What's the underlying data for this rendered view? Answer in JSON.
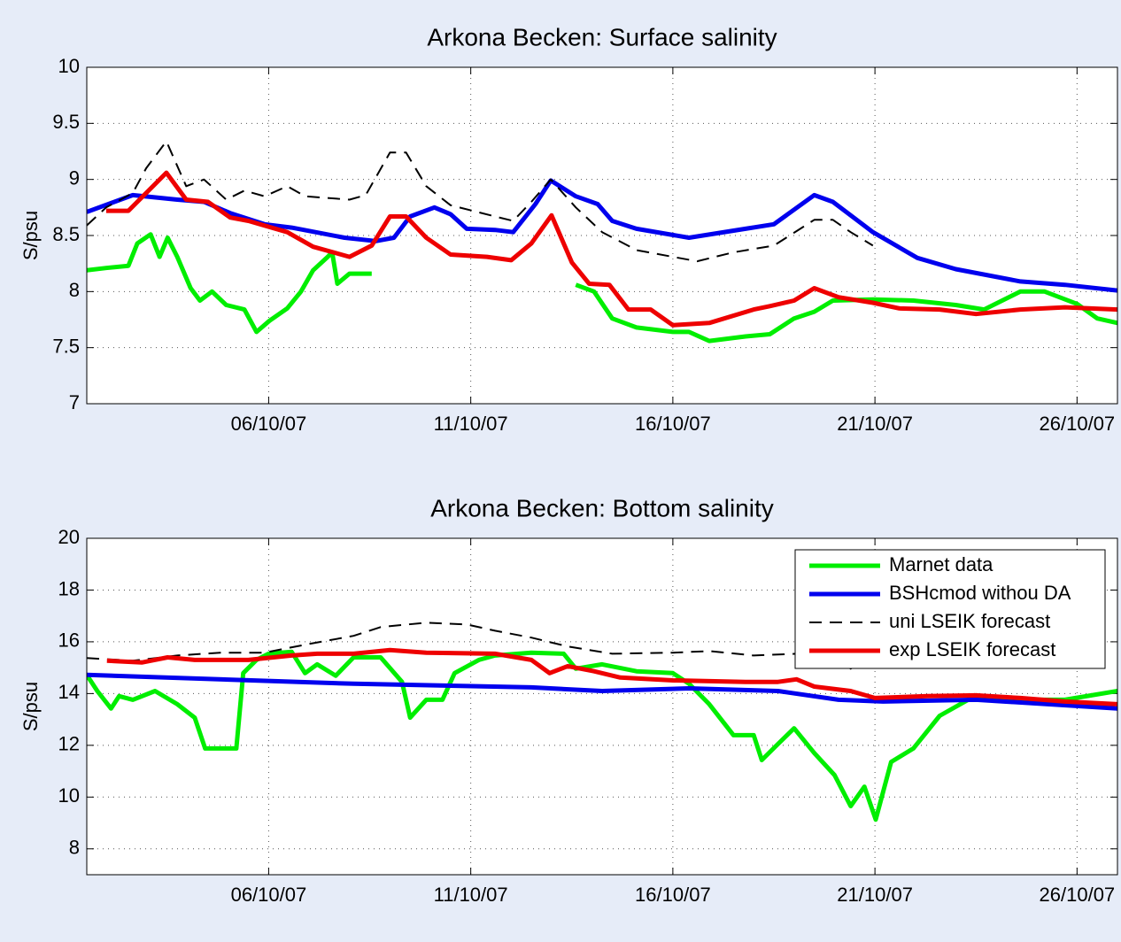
{
  "chart_data": [
    {
      "type": "line",
      "title": "Arkona Becken: Surface salinity",
      "ylabel": "S/psu",
      "xlim": [
        1.5,
        27
      ],
      "ylim": [
        7,
        10
      ],
      "grid": true,
      "xticks": [
        {
          "value": 6,
          "label": "06/10/07"
        },
        {
          "value": 11,
          "label": "11/10/07"
        },
        {
          "value": 16,
          "label": "16/10/07"
        },
        {
          "value": 21,
          "label": "21/10/07"
        },
        {
          "value": 26,
          "label": "26/10/07"
        }
      ],
      "yticks": [
        7,
        7.5,
        8,
        8.5,
        9,
        9.5,
        10
      ],
      "series": [
        {
          "color": "#00ee00",
          "line_style": "solid",
          "x": [
            1.5,
            1.98,
            2.53,
            2.75,
            3.08,
            3.3,
            3.5,
            3.74,
            4.07,
            4.3,
            4.6,
            4.95,
            5.4,
            5.7,
            6.02,
            6.46,
            6.8,
            7.1,
            7.46,
            7.57,
            7.7,
            8,
            8.55,
            9,
            13.6,
            14.05,
            14.5,
            15.1,
            16,
            16.4,
            16.9,
            17.8,
            18.4,
            19,
            19.5,
            19.96,
            20.95,
            21.95,
            23,
            23.7,
            24.6,
            25.2,
            26,
            26.5,
            27
          ],
          "values": [
            8.19,
            8.21,
            8.23,
            8.43,
            8.51,
            8.31,
            8.48,
            8.31,
            8.03,
            7.92,
            8.0,
            7.88,
            7.84,
            7.64,
            7.74,
            7.85,
            8.0,
            8.19,
            8.31,
            8.35,
            8.07,
            8.16,
            8.16,
            null,
            8.06,
            8.0,
            7.76,
            7.68,
            7.64,
            7.64,
            7.56,
            7.6,
            7.62,
            7.76,
            7.82,
            7.92,
            7.93,
            7.92,
            7.88,
            7.84,
            8.0,
            8.0,
            7.89,
            7.76,
            7.72
          ]
        },
        {
          "color": "#0000ee",
          "line_style": "solid",
          "x": [
            1.5,
            2.64,
            3.74,
            4.4,
            5.05,
            5.9,
            6.57,
            7.88,
            8.65,
            9.1,
            9.5,
            10.1,
            10.5,
            10.9,
            11.6,
            12.05,
            12.6,
            12.98,
            13.6,
            14.14,
            14.5,
            15.1,
            16.4,
            17.8,
            18.5,
            19.5,
            19.96,
            20.95,
            22.05,
            23,
            24.6,
            25.7,
            27
          ],
          "values": [
            8.71,
            8.86,
            8.82,
            8.8,
            8.7,
            8.6,
            8.57,
            8.48,
            8.45,
            8.48,
            8.67,
            8.75,
            8.69,
            8.56,
            8.55,
            8.53,
            8.78,
            8.99,
            8.85,
            8.78,
            8.63,
            8.56,
            8.48,
            8.56,
            8.6,
            8.86,
            8.8,
            8.53,
            8.3,
            8.2,
            8.09,
            8.06,
            8.01
          ]
        },
        {
          "color": "#000000",
          "line_style": "dashed",
          "x": [
            1.5,
            1.98,
            2.64,
            2.97,
            3.47,
            3.96,
            4.4,
            4.95,
            5.4,
            5.9,
            6.46,
            6.9,
            8,
            8.4,
            9,
            9.4,
            9.9,
            10.5,
            11.6,
            12.05,
            12.5,
            12.98,
            13.6,
            14.25,
            15.1,
            16,
            16.6,
            17.5,
            18.5,
            19.5,
            19.96,
            20.4,
            20.95
          ],
          "values": [
            8.59,
            8.75,
            8.88,
            9.1,
            9.34,
            8.94,
            9.0,
            8.82,
            8.9,
            8.85,
            8.94,
            8.85,
            8.82,
            8.86,
            9.24,
            9.24,
            8.94,
            8.77,
            8.67,
            8.63,
            8.8,
            9.0,
            8.75,
            8.53,
            8.37,
            8.31,
            8.27,
            8.35,
            8.41,
            8.64,
            8.64,
            8.53,
            8.41
          ]
        },
        {
          "color": "#ee0000",
          "line_style": "solid",
          "x": [
            1.98,
            2.53,
            3.47,
            3.96,
            4.5,
            5.05,
            5.5,
            6.46,
            7.1,
            8,
            8.55,
            9,
            9.4,
            9.9,
            10.5,
            11.4,
            12,
            12.5,
            13,
            13.5,
            13.93,
            14.43,
            14.9,
            15.45,
            16,
            16.9,
            18,
            18.4,
            19,
            19.5,
            20.1,
            20.95,
            21.6,
            22.6,
            23.5,
            24.6,
            25.7,
            27
          ],
          "values": [
            8.72,
            8.72,
            9.06,
            8.82,
            8.8,
            8.66,
            8.63,
            8.53,
            8.4,
            8.31,
            8.41,
            8.67,
            8.67,
            8.48,
            8.33,
            8.31,
            8.28,
            8.43,
            8.68,
            8.26,
            8.07,
            8.06,
            7.84,
            7.84,
            7.7,
            7.72,
            7.84,
            7.87,
            7.92,
            8.03,
            7.95,
            7.9,
            7.85,
            7.84,
            7.8,
            7.84,
            7.86,
            7.84
          ]
        }
      ]
    },
    {
      "type": "line",
      "title": "Arkona Becken: Bottom salinity",
      "ylabel": "S/psu",
      "xlim": [
        1.5,
        27
      ],
      "ylim": [
        7,
        20
      ],
      "grid": true,
      "legend": "upper right",
      "xticks": [
        {
          "value": 6,
          "label": "06/10/07"
        },
        {
          "value": 11,
          "label": "11/10/07"
        },
        {
          "value": 16,
          "label": "16/10/07"
        },
        {
          "value": 21,
          "label": "21/10/07"
        },
        {
          "value": 26,
          "label": "26/10/07"
        }
      ],
      "yticks": [
        8,
        10,
        12,
        14,
        16,
        18,
        20
      ],
      "series": [
        {
          "name": "Marnet data",
          "color": "#00ee00",
          "line_style": "solid",
          "x": [
            1.5,
            1.76,
            2.1,
            2.3,
            2.64,
            3.19,
            3.74,
            4.17,
            4.43,
            5.05,
            5.2,
            5.37,
            5.7,
            6,
            6.57,
            6.9,
            7.2,
            7.66,
            8.1,
            8.77,
            9.3,
            9.5,
            9.9,
            10.3,
            10.6,
            11.2,
            11.6,
            12.5,
            13.3,
            13.6,
            14.25,
            15.1,
            16,
            16.4,
            16.9,
            17.5,
            18,
            18.2,
            18.6,
            19,
            19.5,
            20,
            20.4,
            20.74,
            21.02,
            21.4,
            21.95,
            22.6,
            23.5,
            24.4,
            25.7,
            27
          ],
          "values": [
            14.72,
            14.1,
            13.42,
            13.9,
            13.76,
            14.1,
            13.59,
            13.07,
            11.88,
            11.88,
            11.88,
            14.79,
            15.3,
            15.54,
            15.61,
            14.79,
            15.13,
            14.69,
            15.4,
            15.4,
            14.45,
            13.07,
            13.76,
            13.76,
            14.79,
            15.3,
            15.47,
            15.58,
            15.54,
            14.96,
            15.13,
            14.86,
            14.79,
            14.38,
            13.59,
            12.39,
            12.39,
            11.43,
            12.05,
            12.66,
            11.7,
            10.85,
            9.65,
            10.4,
            9.13,
            11.36,
            11.88,
            13.14,
            13.93,
            13.76,
            13.76,
            14.1
          ]
        },
        {
          "name": "BSHcmod withou DA",
          "color": "#0000ee",
          "line_style": "solid",
          "x": [
            1.5,
            8.1,
            12.5,
            14.25,
            16.4,
            18.6,
            20.1,
            21.2,
            23.5,
            27
          ],
          "values": [
            14.72,
            14.38,
            14.24,
            14.1,
            14.2,
            14.1,
            13.76,
            13.69,
            13.76,
            13.42
          ]
        },
        {
          "name": " uni LSEIK forecast",
          "color": "#000000",
          "line_style": "dashed",
          "x": [
            1.5,
            2.64,
            3.74,
            4.8,
            5.9,
            7,
            8.1,
            8.77,
            9.9,
            10.9,
            11.6,
            12.5,
            13.4,
            14.5,
            16,
            16.9,
            18,
            19.06,
            20,
            20.4,
            20.74
          ],
          "values": [
            15.37,
            15.27,
            15.47,
            15.58,
            15.58,
            15.92,
            16.23,
            16.57,
            16.74,
            16.67,
            16.43,
            16.16,
            15.82,
            15.54,
            15.58,
            15.64,
            15.47,
            15.54,
            15.4,
            14.96,
            15.3
          ]
        },
        {
          "name": "exp LSEIK forecast",
          "color": "#ee0000",
          "line_style": "solid",
          "x": [
            2,
            2.86,
            3.5,
            4.17,
            5.5,
            6.57,
            7.2,
            8.1,
            9,
            9.9,
            11.6,
            12.5,
            12.95,
            13.4,
            14.05,
            14.7,
            16,
            17.8,
            18.6,
            19.06,
            19.5,
            20.4,
            21,
            22.3,
            23.5,
            24.6,
            25.7,
            27
          ],
          "values": [
            15.27,
            15.2,
            15.4,
            15.3,
            15.3,
            15.47,
            15.54,
            15.54,
            15.68,
            15.58,
            15.54,
            15.3,
            14.79,
            15.06,
            14.86,
            14.62,
            14.51,
            14.45,
            14.45,
            14.55,
            14.27,
            14.1,
            13.83,
            13.9,
            13.93,
            13.83,
            13.69,
            13.59
          ]
        }
      ]
    }
  ]
}
